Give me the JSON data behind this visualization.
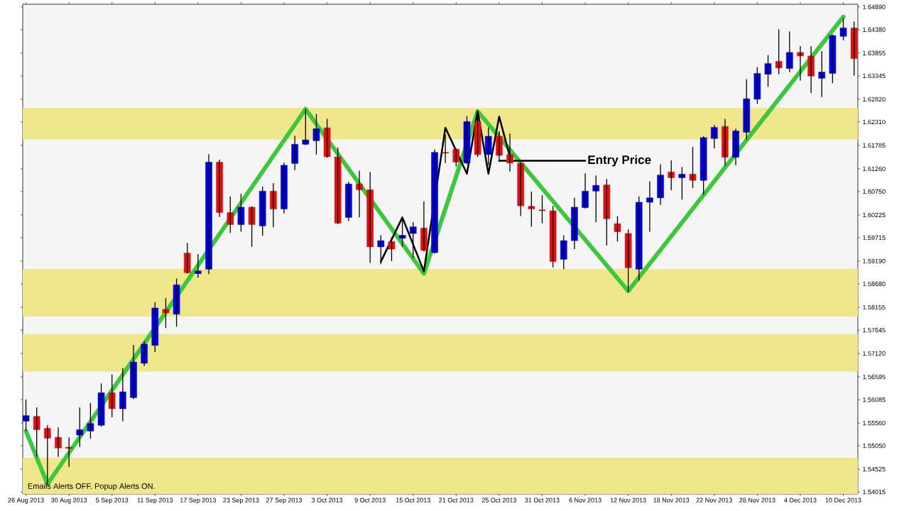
{
  "chart_data": {
    "type": "candlestick",
    "categories": [
      "26 Aug 2013",
      null,
      null,
      null,
      "30 Aug 2013",
      null,
      null,
      null,
      "5 Sep 2013",
      null,
      null,
      null,
      "11 Sep 2013",
      null,
      null,
      null,
      "17 Sep 2013",
      null,
      null,
      null,
      "23 Sep 2013",
      null,
      null,
      null,
      "27 Sep 2013",
      null,
      null,
      null,
      "3 Oct 2013",
      null,
      null,
      null,
      "9 Oct 2013",
      null,
      null,
      null,
      "15 Oct 2013",
      null,
      null,
      null,
      "21 Oct 2013",
      null,
      null,
      null,
      "25 Oct 2013",
      null,
      null,
      null,
      "31 Oct 2013",
      null,
      null,
      null,
      "6 Nov 2013",
      null,
      null,
      null,
      "12 Nov 2013",
      null,
      null,
      null,
      "18 Nov 2013",
      null,
      null,
      null,
      "22 Nov 2013",
      null,
      null,
      null,
      "28 Nov 2013",
      null,
      null,
      null,
      "4 Dec 2013",
      null,
      null,
      null,
      "10 Dec 2013",
      null
    ],
    "ohlc": [
      [
        1.556,
        1.5609,
        1.5538,
        1.5573
      ],
      [
        1.5571,
        1.5591,
        1.548,
        1.5541
      ],
      [
        1.5544,
        1.5551,
        1.5419,
        1.5522
      ],
      [
        1.5524,
        1.5546,
        1.548,
        1.55
      ],
      [
        1.5502,
        1.5524,
        1.5458,
        1.5499
      ],
      [
        1.5529,
        1.5591,
        1.5502,
        1.5541
      ],
      [
        1.5538,
        1.5601,
        1.5521,
        1.5555
      ],
      [
        1.5551,
        1.5645,
        1.5548,
        1.5624
      ],
      [
        1.5624,
        1.5665,
        1.5569,
        1.5588
      ],
      [
        1.5588,
        1.5679,
        1.556,
        1.5626
      ],
      [
        1.5613,
        1.5731,
        1.561,
        1.5693
      ],
      [
        1.569,
        1.574,
        1.5684,
        1.5733
      ],
      [
        1.573,
        1.5827,
        1.5715,
        1.5814
      ],
      [
        1.5811,
        1.5836,
        1.5769,
        1.5803
      ],
      [
        1.58,
        1.588,
        1.5772,
        1.5866
      ],
      [
        1.5937,
        1.596,
        1.5891,
        1.5893
      ],
      [
        1.5891,
        1.5935,
        1.5882,
        1.5897
      ],
      [
        1.5901,
        1.6159,
        1.589,
        1.6141
      ],
      [
        1.6141,
        1.6147,
        1.6018,
        1.6028
      ],
      [
        1.6028,
        1.6064,
        1.5982,
        1.6001
      ],
      [
        1.6001,
        1.607,
        1.5985,
        1.604
      ],
      [
        1.604,
        1.6042,
        1.5951,
        1.6001
      ],
      [
        1.5998,
        1.6086,
        1.5976,
        1.6076
      ],
      [
        1.6076,
        1.6094,
        1.5995,
        1.6036
      ],
      [
        1.6036,
        1.614,
        1.6026,
        1.6134
      ],
      [
        1.6138,
        1.62,
        1.6123,
        1.6181
      ],
      [
        1.6181,
        1.626,
        1.6179,
        1.6191
      ],
      [
        1.6189,
        1.6249,
        1.6158,
        1.6216
      ],
      [
        1.6218,
        1.6238,
        1.6151,
        1.6153
      ],
      [
        1.6153,
        1.6174,
        1.6002,
        1.6004
      ],
      [
        1.6017,
        1.6097,
        1.6009,
        1.6092
      ],
      [
        1.6092,
        1.6122,
        1.6017,
        1.6079
      ],
      [
        1.6079,
        1.6119,
        1.5915,
        1.5951
      ],
      [
        1.5951,
        1.5977,
        1.5912,
        1.5965
      ],
      [
        1.5963,
        1.5973,
        1.5919,
        1.5946
      ],
      [
        1.597,
        1.6017,
        1.5951,
        1.5977
      ],
      [
        1.5981,
        1.6006,
        1.5926,
        1.5996
      ],
      [
        1.5993,
        1.6053,
        1.5941,
        1.5943
      ],
      [
        1.5938,
        1.6169,
        1.5936,
        1.6163
      ],
      [
        1.6163,
        1.6202,
        1.6139,
        1.6161
      ],
      [
        1.617,
        1.6172,
        1.6131,
        1.6141
      ],
      [
        1.6139,
        1.6244,
        1.6137,
        1.6232
      ],
      [
        1.6232,
        1.6244,
        1.6153,
        1.6158
      ],
      [
        1.6158,
        1.6219,
        1.6134,
        1.6199
      ],
      [
        1.6199,
        1.621,
        1.6144,
        1.6156
      ],
      [
        1.6158,
        1.6205,
        1.612,
        1.6139
      ],
      [
        1.6138,
        1.614,
        1.602,
        1.6043
      ],
      [
        1.6042,
        1.6075,
        1.5996,
        1.6036
      ],
      [
        1.6034,
        1.6067,
        1.6004,
        1.6032
      ],
      [
        1.6032,
        1.6043,
        1.5905,
        1.5918
      ],
      [
        1.5923,
        1.5977,
        1.5901,
        1.5965
      ],
      [
        1.5965,
        1.6061,
        1.5946,
        1.604
      ],
      [
        1.6039,
        1.6116,
        1.6037,
        1.6076
      ],
      [
        1.6076,
        1.6111,
        1.6006,
        1.6089
      ],
      [
        1.609,
        1.6103,
        1.5954,
        1.6014
      ],
      [
        1.6003,
        1.602,
        1.5963,
        1.5985
      ],
      [
        1.5981,
        1.599,
        1.585,
        1.5904
      ],
      [
        1.5901,
        1.6064,
        1.5875,
        1.6051
      ],
      [
        1.6051,
        1.6098,
        1.5985,
        1.6061
      ],
      [
        1.6061,
        1.6136,
        1.6045,
        1.6112
      ],
      [
        1.6119,
        1.6145,
        1.6078,
        1.6106
      ],
      [
        1.6106,
        1.613,
        1.6057,
        1.6114
      ],
      [
        1.6114,
        1.6175,
        1.6083,
        1.61
      ],
      [
        1.61,
        1.6199,
        1.6068,
        1.6196
      ],
      [
        1.6194,
        1.6224,
        1.6172,
        1.6219
      ],
      [
        1.6221,
        1.6238,
        1.6133,
        1.6152
      ],
      [
        1.6152,
        1.6216,
        1.6134,
        1.6211
      ],
      [
        1.6208,
        1.6327,
        1.6192,
        1.6283
      ],
      [
        1.6282,
        1.6354,
        1.6272,
        1.634
      ],
      [
        1.6338,
        1.6381,
        1.631,
        1.6362
      ],
      [
        1.6367,
        1.6439,
        1.6338,
        1.6352
      ],
      [
        1.6351,
        1.6434,
        1.6343,
        1.6387
      ],
      [
        1.6387,
        1.6401,
        1.6324,
        1.6379
      ],
      [
        1.6379,
        1.6401,
        1.6296,
        1.6334
      ],
      [
        1.6329,
        1.639,
        1.6287,
        1.6343
      ],
      [
        1.634,
        1.6427,
        1.6318,
        1.6425
      ],
      [
        1.6423,
        1.6464,
        1.6414,
        1.6442
      ],
      [
        1.6442,
        1.6456,
        1.6335,
        1.6373
      ]
    ],
    "colors": [
      "#0000dd",
      "#dd1111",
      "#dd1111",
      "#dd1111",
      "#dd1111",
      "#0000dd",
      "#0000dd",
      "#0000dd",
      "#dd1111",
      "#0000dd",
      "#0000dd",
      "#0000dd",
      "#0000dd",
      "#dd1111",
      "#0000dd",
      "#dd1111",
      "#0000dd",
      "#0000dd",
      "#dd1111",
      "#dd1111",
      "#0000dd",
      "#dd1111",
      "#0000dd",
      "#dd1111",
      "#0000dd",
      "#0000dd",
      "#0000dd",
      "#0000dd",
      "#dd1111",
      "#dd1111",
      "#0000dd",
      "#dd1111",
      "#dd1111",
      "#0000dd",
      "#dd1111",
      "#0000dd",
      "#0000dd",
      "#dd1111",
      "#0000dd",
      "#dd1111",
      "#dd1111",
      "#0000dd",
      "#dd1111",
      "#0000dd",
      "#dd1111",
      "#dd1111",
      "#dd1111",
      "#dd1111",
      "#dd1111",
      "#dd1111",
      "#0000dd",
      "#0000dd",
      "#0000dd",
      "#0000dd",
      "#dd1111",
      "#dd1111",
      "#dd1111",
      "#0000dd",
      "#0000dd",
      "#0000dd",
      "#dd1111",
      "#0000dd",
      "#dd1111",
      "#0000dd",
      "#0000dd",
      "#dd1111",
      "#0000dd",
      "#0000dd",
      "#0000dd",
      "#0000dd",
      "#dd1111",
      "#0000dd",
      "#dd1111",
      "#dd1111",
      "#0000dd",
      "#0000dd",
      "#0000dd",
      "#dd1111"
    ],
    "series": [
      {
        "type": "line",
        "color": "#3cc83c",
        "values": [
          1.5538,
          null,
          1.5419,
          null,
          null,
          null,
          null,
          null,
          null,
          null,
          null,
          null,
          null,
          null,
          null,
          null,
          null,
          null,
          null,
          null,
          null,
          null,
          null,
          null,
          null,
          null,
          1.626,
          null,
          null,
          null,
          null,
          null,
          null,
          null,
          null,
          null,
          null,
          1.5891,
          null,
          null,
          null,
          null,
          1.6255,
          null,
          null,
          null,
          null,
          null,
          null,
          null,
          null,
          null,
          null,
          null,
          null,
          null,
          1.5852,
          null,
          null,
          null,
          null,
          null,
          null,
          null,
          null,
          null,
          null,
          null,
          null,
          null,
          null,
          null,
          null,
          null,
          null,
          null,
          1.6467,
          null
        ]
      },
      {
        "type": "line",
        "color": "#000000",
        "values": [
          null,
          null,
          null,
          null,
          null,
          null,
          null,
          null,
          null,
          null,
          null,
          null,
          null,
          null,
          null,
          null,
          null,
          null,
          null,
          null,
          null,
          null,
          null,
          null,
          null,
          null,
          null,
          null,
          null,
          null,
          null,
          null,
          null,
          1.5918,
          null,
          1.6017,
          null,
          1.5896,
          null,
          1.6218,
          null,
          1.6115,
          1.6255,
          1.6115,
          1.6243,
          1.6153,
          null,
          null,
          null,
          null,
          null,
          null,
          null,
          null,
          null,
          null,
          null,
          null,
          null,
          null,
          null,
          null,
          null,
          null,
          null,
          null,
          null,
          null,
          null,
          null,
          null,
          null,
          null,
          null,
          null,
          null,
          null,
          null
        ]
      },
      {
        "type": "line",
        "color": "#000000",
        "values": [
          null,
          null,
          null,
          null,
          null,
          null,
          null,
          null,
          null,
          null,
          null,
          null,
          null,
          null,
          null,
          null,
          null,
          null,
          null,
          null,
          null,
          null,
          null,
          null,
          null,
          null,
          null,
          null,
          null,
          null,
          null,
          null,
          null,
          null,
          null,
          null,
          null,
          null,
          null,
          null,
          null,
          null,
          null,
          null,
          1.6144,
          null,
          null,
          null,
          null,
          null,
          null,
          null,
          1.6144,
          null,
          null,
          null,
          null,
          null,
          null,
          null,
          null,
          null,
          null,
          null,
          null,
          null,
          null,
          null,
          null,
          null,
          null,
          null,
          null,
          null,
          null,
          null,
          null,
          null
        ]
      }
    ],
    "bands": [
      {
        "axis": "y",
        "from": 1.6192,
        "to": 1.6263,
        "color": "#f0e68c"
      },
      {
        "axis": "y",
        "from": 1.5795,
        "to": 1.5902,
        "color": "#f0e68c"
      },
      {
        "axis": "y",
        "from": 1.5671,
        "to": 1.5756,
        "color": "#f0e68c"
      },
      {
        "axis": "y",
        "from": 1.5397,
        "to": 1.5478,
        "color": "#f0e68c"
      }
    ],
    "annotations": [
      "Entry Price",
      "Emails Alerts OFF.  Popup Alerts ON."
    ],
    "ylim": [
      1.5397,
      1.6495
    ],
    "yticks": [
      {
        "value": 1.6489,
        "label": "1.64890"
      },
      {
        "value": 1.6438,
        "label": "1.64380"
      },
      {
        "value": 1.63855,
        "label": "1.63855"
      },
      {
        "value": 1.63345,
        "label": "1.63345"
      },
      {
        "value": 1.6282,
        "label": "1.62820"
      },
      {
        "value": 1.6231,
        "label": "1.62310"
      },
      {
        "value": 1.61785,
        "label": "1.61785"
      },
      {
        "value": 1.6126,
        "label": "1.61260"
      },
      {
        "value": 1.6075,
        "label": "1.60750"
      },
      {
        "value": 1.60225,
        "label": "1.60225"
      },
      {
        "value": 1.59715,
        "label": "1.59715"
      },
      {
        "value": 1.5919,
        "label": "1.59190"
      },
      {
        "value": 1.5868,
        "label": "1.58680"
      },
      {
        "value": 1.58155,
        "label": "1.58155"
      },
      {
        "value": 1.57645,
        "label": "1.57645"
      },
      {
        "value": 1.5712,
        "label": "1.57120"
      },
      {
        "value": 1.56595,
        "label": "1.56595"
      },
      {
        "value": 1.56085,
        "label": "1.56085"
      },
      {
        "value": 1.5556,
        "label": "1.55560"
      },
      {
        "value": 1.5505,
        "label": "1.55050"
      },
      {
        "value": 1.54525,
        "label": "1.54525"
      },
      {
        "value": 1.54015,
        "label": "1.54015"
      }
    ]
  }
}
